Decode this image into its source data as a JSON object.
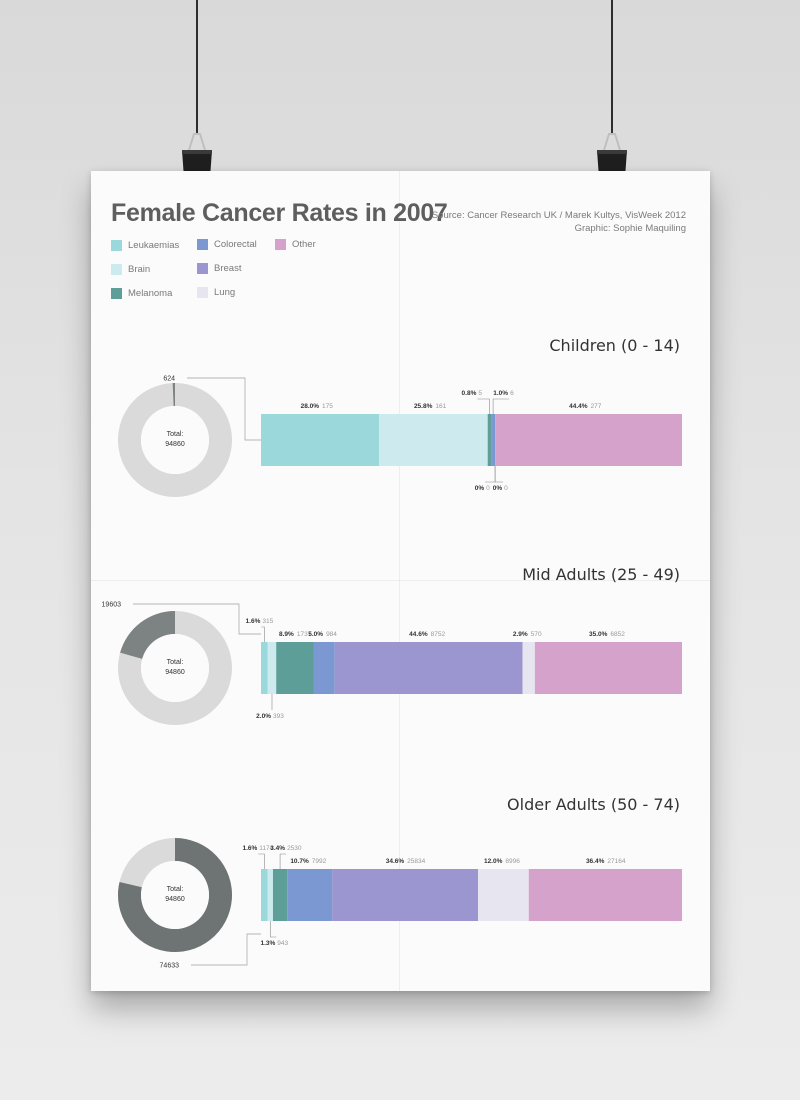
{
  "title": "Female Cancer Rates in 2007",
  "source": "Source: Cancer Research UK / Marek Kultys, VisWeek 2012",
  "graphic": "Graphic: Sophie Maquiling",
  "legend": [
    {
      "name": "Leukaemias",
      "color": "#9ad8db"
    },
    {
      "name": "Brain",
      "color": "#cdebee"
    },
    {
      "name": "Melanoma",
      "color": "#5e9e98"
    },
    {
      "name": "Colorectal",
      "color": "#7c98d2"
    },
    {
      "name": "Breast",
      "color": "#9b96cf"
    },
    {
      "name": "Lung",
      "color": "#e7e5f0"
    },
    {
      "name": "Other",
      "color": "#d5a2cc"
    }
  ],
  "chart_data": [
    {
      "type": "bar",
      "title": "Children (0 - 14)",
      "donut": {
        "center_label": "Total:",
        "total": "94860",
        "group_value": "624",
        "group_count": 624
      },
      "categories": [
        "Leukaemias",
        "Brain",
        "Melanoma",
        "Colorectal",
        "Breast",
        "Lung",
        "Other"
      ],
      "percent_labels": [
        "28.0%",
        "25.8%",
        "0.8%",
        "1.0%",
        "0%",
        "0%",
        "44.4%"
      ],
      "values": [
        175,
        161,
        5,
        6,
        0,
        0,
        277
      ]
    },
    {
      "type": "bar",
      "title": "Mid Adults (25 - 49)",
      "donut": {
        "center_label": "Total:",
        "total": "94860",
        "group_value": "19603",
        "group_count": 19603
      },
      "categories": [
        "Leukaemias",
        "Brain",
        "Melanoma",
        "Colorectal",
        "Breast",
        "Lung",
        "Other"
      ],
      "percent_labels": [
        "1.6%",
        "2.0%",
        "8.9%",
        "5.0%",
        "44.6%",
        "2.9%",
        "35.0%"
      ],
      "values": [
        315,
        393,
        1737,
        984,
        8752,
        570,
        6852
      ]
    },
    {
      "type": "bar",
      "title": "Older Adults (50 - 74)",
      "donut": {
        "center_label": "Total:",
        "total": "94860",
        "group_value": "74633",
        "group_count": 74633
      },
      "categories": [
        "Leukaemias",
        "Brain",
        "Melanoma",
        "Colorectal",
        "Breast",
        "Lung",
        "Other"
      ],
      "percent_labels": [
        "1.6%",
        "1.3%",
        "3.4%",
        "10.7%",
        "34.6%",
        "12.0%",
        "36.4%"
      ],
      "values": [
        1174,
        943,
        2530,
        7992,
        25834,
        8996,
        27164
      ]
    }
  ]
}
